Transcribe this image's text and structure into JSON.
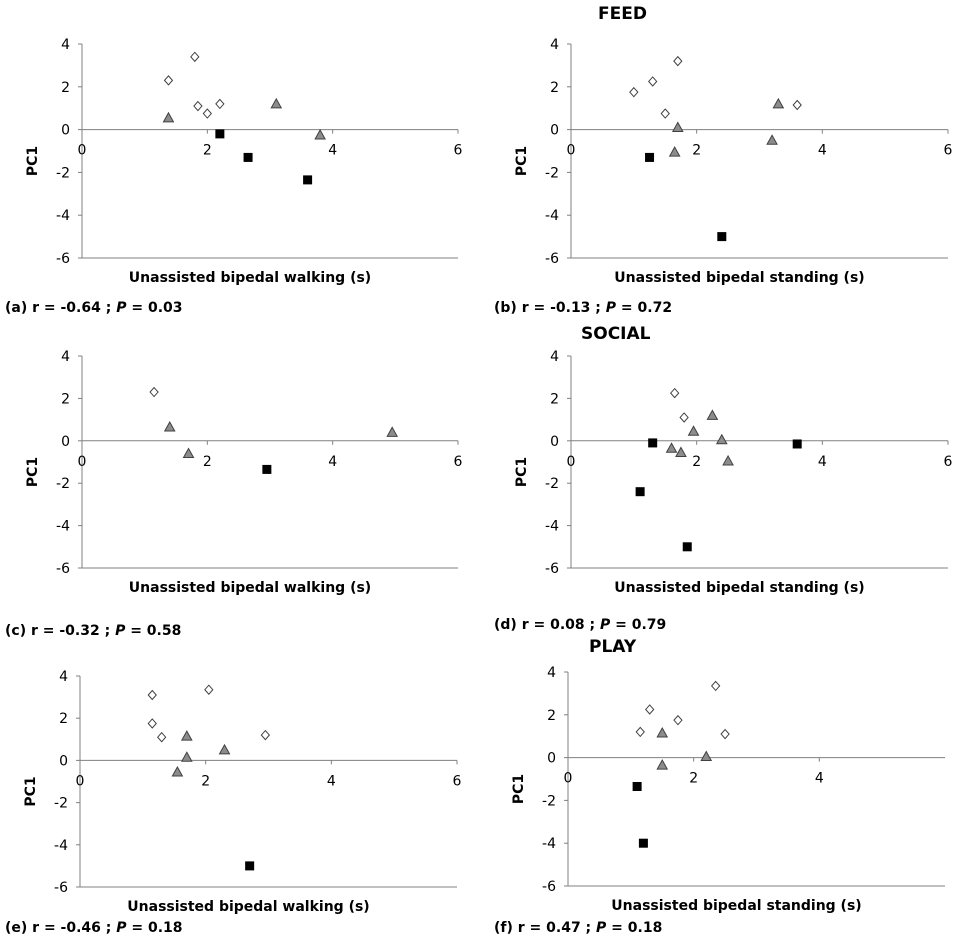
{
  "sections": [
    {
      "title": "FEED"
    },
    {
      "title": "SOCIAL"
    },
    {
      "title": "PLAY"
    }
  ],
  "marker_colors": {
    "diamond_fill": "#ffffff",
    "triangle_fill": "#8c8c8c",
    "square_fill": "#000000",
    "stroke": "#404040"
  },
  "chart_data": [
    {
      "type": "scatter",
      "panel": "a",
      "section": "FEED",
      "xlabel": "Unassisted bipedal walking (s)",
      "ylabel": "PC1",
      "xlim": [
        0,
        6
      ],
      "ylim": [
        -6,
        4
      ],
      "xticks": [
        0,
        2,
        4,
        6
      ],
      "yticks": [
        -6,
        -4,
        -2,
        0,
        2,
        4
      ],
      "caption": {
        "label": "(a) r = -0.64 ; ",
        "p_symbol": "P",
        "p_text": " = 0.03"
      },
      "series": [
        {
          "marker": "diamond",
          "points": [
            [
              1.38,
              2.3
            ],
            [
              1.8,
              3.4
            ],
            [
              1.85,
              1.1
            ],
            [
              2.0,
              0.75
            ],
            [
              2.2,
              1.2
            ]
          ]
        },
        {
          "marker": "triangle",
          "points": [
            [
              1.38,
              0.55
            ],
            [
              3.1,
              1.2
            ],
            [
              3.8,
              -0.25
            ]
          ]
        },
        {
          "marker": "square",
          "points": [
            [
              2.2,
              -0.2
            ],
            [
              2.65,
              -1.3
            ],
            [
              3.6,
              -2.35
            ]
          ]
        }
      ]
    },
    {
      "type": "scatter",
      "panel": "b",
      "section": "FEED",
      "xlabel": "Unassisted bipedal standing (s)",
      "ylabel": "PC1",
      "xlim": [
        0,
        6
      ],
      "ylim": [
        -6,
        4
      ],
      "xticks": [
        0,
        2,
        4,
        6
      ],
      "yticks": [
        -6,
        -4,
        -2,
        0,
        2,
        4
      ],
      "caption": {
        "label": "(b) r = -0.13 ; ",
        "p_symbol": "P",
        "p_text": " = 0.72"
      },
      "series": [
        {
          "marker": "diamond",
          "points": [
            [
              1.0,
              1.75
            ],
            [
              1.3,
              2.25
            ],
            [
              1.5,
              0.75
            ],
            [
              1.7,
              3.2
            ],
            [
              3.6,
              1.15
            ]
          ]
        },
        {
          "marker": "triangle",
          "points": [
            [
              1.65,
              -1.05
            ],
            [
              1.7,
              0.1
            ],
            [
              3.2,
              -0.5
            ],
            [
              3.3,
              1.2
            ]
          ]
        },
        {
          "marker": "square",
          "points": [
            [
              1.25,
              -1.3
            ],
            [
              2.4,
              -5.0
            ]
          ]
        }
      ]
    },
    {
      "type": "scatter",
      "panel": "c",
      "section": "SOCIAL",
      "xlabel": "Unassisted bipedal walking (s)",
      "ylabel": "PC1",
      "xlim": [
        0,
        6
      ],
      "ylim": [
        -6,
        4
      ],
      "xticks": [
        0,
        2,
        4,
        6
      ],
      "yticks": [
        -6,
        -4,
        -2,
        0,
        2,
        4
      ],
      "caption": {
        "label": "(c) r = -0.32 ;  ",
        "p_symbol": "P",
        "p_text": " = 0.58"
      },
      "series": [
        {
          "marker": "diamond",
          "points": [
            [
              1.15,
              2.3
            ]
          ]
        },
        {
          "marker": "triangle",
          "points": [
            [
              1.4,
              0.65
            ],
            [
              1.7,
              -0.6
            ],
            [
              4.95,
              0.4
            ]
          ]
        },
        {
          "marker": "square",
          "points": [
            [
              2.95,
              -1.35
            ]
          ]
        }
      ]
    },
    {
      "type": "scatter",
      "panel": "d",
      "section": "SOCIAL",
      "xlabel": "Unassisted bipedal standing (s)",
      "ylabel": "PC1",
      "xlim": [
        0,
        6
      ],
      "ylim": [
        -6,
        4
      ],
      "xticks": [
        0,
        2,
        4,
        6
      ],
      "yticks": [
        -6,
        -4,
        -2,
        0,
        2,
        4
      ],
      "caption": {
        "label": "(d) r = 0.08 ; ",
        "p_symbol": "P",
        "p_text": " = 0.79"
      },
      "series": [
        {
          "marker": "diamond",
          "points": [
            [
              1.65,
              2.25
            ],
            [
              1.8,
              1.1
            ]
          ]
        },
        {
          "marker": "triangle",
          "points": [
            [
              1.6,
              -0.35
            ],
            [
              1.75,
              -0.55
            ],
            [
              1.95,
              0.45
            ],
            [
              2.25,
              1.2
            ],
            [
              2.4,
              0.05
            ],
            [
              2.5,
              -0.95
            ]
          ]
        },
        {
          "marker": "square",
          "points": [
            [
              1.3,
              -0.1
            ],
            [
              1.1,
              -2.4
            ],
            [
              1.85,
              -5.0
            ],
            [
              3.6,
              -0.15
            ]
          ]
        }
      ]
    },
    {
      "type": "scatter",
      "panel": "e",
      "section": "PLAY",
      "xlabel": "Unassisted bipedal walking (s)",
      "ylabel": "PC1",
      "xlim": [
        0,
        6
      ],
      "ylim": [
        -6,
        4
      ],
      "xticks": [
        0,
        2,
        4,
        6
      ],
      "yticks": [
        -6,
        -4,
        -2,
        0,
        2,
        4
      ],
      "caption": {
        "label": "(e) r = -0.46 ; ",
        "p_symbol": "P",
        "p_text": " = 0.18"
      },
      "series": [
        {
          "marker": "diamond",
          "points": [
            [
              1.15,
              3.1
            ],
            [
              1.15,
              1.75
            ],
            [
              1.3,
              1.1
            ],
            [
              2.05,
              3.35
            ],
            [
              2.95,
              1.2
            ]
          ]
        },
        {
          "marker": "triangle",
          "points": [
            [
              1.55,
              -0.55
            ],
            [
              1.7,
              0.15
            ],
            [
              1.7,
              1.15
            ],
            [
              2.3,
              0.5
            ]
          ]
        },
        {
          "marker": "square",
          "points": [
            [
              2.7,
              -5.0
            ]
          ]
        }
      ]
    },
    {
      "type": "scatter",
      "panel": "f",
      "section": "PLAY",
      "xlabel": "Unassisted bipedal standing (s)",
      "ylabel": "PC1",
      "xlim": [
        0,
        6
      ],
      "ylim": [
        -6,
        4
      ],
      "xticks": [
        0,
        2,
        4
      ],
      "yticks": [
        -6,
        -4,
        -2,
        0,
        2,
        4
      ],
      "caption": {
        "label": "(f) r = 0.47 ; ",
        "p_symbol": "P",
        "p_text": " = 0.18"
      },
      "series": [
        {
          "marker": "diamond",
          "points": [
            [
              1.15,
              1.2
            ],
            [
              1.3,
              2.25
            ],
            [
              1.75,
              1.75
            ],
            [
              2.35,
              3.35
            ],
            [
              2.5,
              1.1
            ]
          ]
        },
        {
          "marker": "triangle",
          "points": [
            [
              1.5,
              1.15
            ],
            [
              1.5,
              -0.35
            ],
            [
              2.2,
              0.05
            ]
          ]
        },
        {
          "marker": "square",
          "points": [
            [
              1.1,
              -1.35
            ],
            [
              1.2,
              -4.0
            ]
          ]
        }
      ]
    }
  ]
}
